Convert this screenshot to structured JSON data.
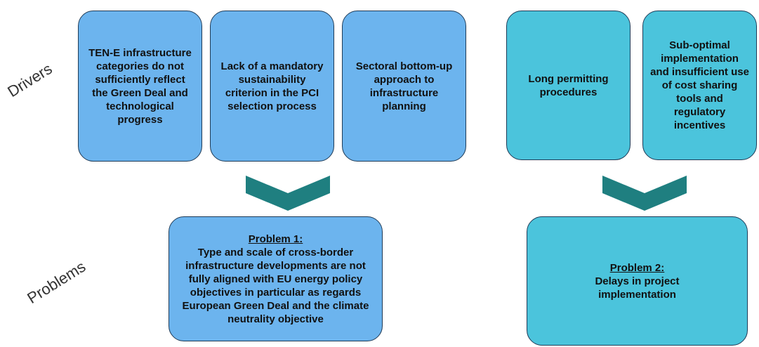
{
  "labels": {
    "drivers": "Drivers",
    "problems": "Problems"
  },
  "drivers": [
    "TEN-E infrastructure categories do not sufficiently reflect the Green Deal and technological progress",
    "Lack of a mandatory sustainability criterion in the PCI selection process",
    "Sectoral bottom-up approach to infrastructure planning",
    "Long permitting procedures",
    "Sub-optimal implementation and insufficient use of cost sharing tools and regulatory incentives"
  ],
  "problems": [
    {
      "title": "Problem 1:",
      "text": "Type and scale of cross-border infrastructure developments are not fully aligned with EU energy policy objectives in particular as regards European Green Deal and the climate neutrality objective"
    },
    {
      "title": "Problem 2:",
      "text": "Delays in project implementation"
    }
  ]
}
